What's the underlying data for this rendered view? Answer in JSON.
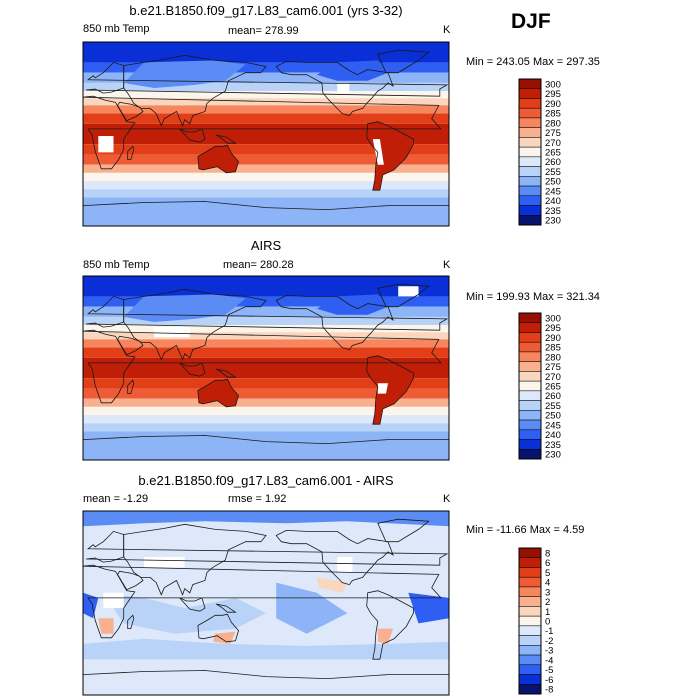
{
  "season": "DJF",
  "colors": {
    "abs_scale": [
      "#08136e",
      "#0a2fd6",
      "#2e5ff2",
      "#5b8cf5",
      "#8db4f7",
      "#b9d3f8",
      "#dde9fa",
      "#fbf5ec",
      "#fbd6bf",
      "#f9b08f",
      "#f7865f",
      "#ef5b34",
      "#e23e18",
      "#c11e08",
      "#961003"
    ],
    "diff_scale": [
      "#08136e",
      "#0a2fd6",
      "#2e5ff2",
      "#5b8cf5",
      "#8db4f7",
      "#b9d3f8",
      "#dde9fa",
      "#fbf5ec",
      "#fbd6bf",
      "#f9b08f",
      "#f7865f",
      "#ef5b34",
      "#e23e18",
      "#c11e08",
      "#961003"
    ],
    "ocean_cold": "#4a7bf0",
    "land_mask": "#ffffff"
  },
  "chart_data": [
    {
      "type": "heatmap",
      "title": "b.e21.B1850.f09_g17.L83_cam6.001 (yrs 3-32)",
      "left_label": "850 mb Temp",
      "mean_text": "mean= 278.99",
      "units": "K",
      "minmax_text": "Min = 243.05 Max = 297.35",
      "min": 243.05,
      "max": 297.35,
      "mean": 278.99,
      "levels": [
        "230",
        "235",
        "240",
        "245",
        "250",
        "255",
        "260",
        "265",
        "270",
        "275",
        "280",
        "285",
        "290",
        "295",
        "300"
      ],
      "scale": "abs"
    },
    {
      "type": "heatmap",
      "title": "AIRS",
      "left_label": "850 mb Temp",
      "mean_text": "mean= 280.28",
      "units": "K",
      "minmax_text": "Min = 199.93 Max = 321.34",
      "min": 199.93,
      "max": 321.34,
      "mean": 280.28,
      "levels": [
        "230",
        "235",
        "240",
        "245",
        "250",
        "255",
        "260",
        "265",
        "270",
        "275",
        "280",
        "285",
        "290",
        "295",
        "300"
      ],
      "scale": "abs"
    },
    {
      "type": "heatmap",
      "title": "b.e21.B1850.f09_g17.L83_cam6.001 - AIRS",
      "left_label": "mean =   -1.29",
      "mean_text": "rmse =    1.92",
      "units": "K",
      "minmax_text": "Min = -11.66 Max =    4.59",
      "min": -11.66,
      "max": 4.59,
      "mean": -1.29,
      "rmse": 1.92,
      "levels": [
        "-8",
        "-6",
        "-5",
        "-4",
        "-3",
        "-2",
        "-1",
        "0",
        "1",
        "2",
        "3",
        "4",
        "5",
        "6",
        "8"
      ],
      "scale": "diff"
    }
  ]
}
